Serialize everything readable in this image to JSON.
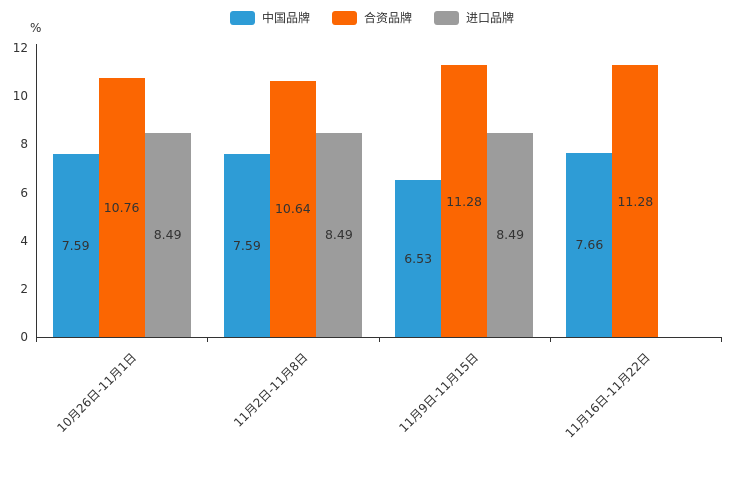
{
  "chart_data": {
    "type": "bar",
    "title": "",
    "categories": [
      "10月26日-11月1日",
      "11月2日-11月8日",
      "11月9日-11月15日",
      "11月16日-11月22日"
    ],
    "series": [
      {
        "name": "中国品牌",
        "color": "#2E9CD6",
        "values": [
          7.59,
          7.59,
          6.53,
          7.66
        ]
      },
      {
        "name": "合资品牌",
        "color": "#FB6602",
        "values": [
          10.76,
          10.64,
          11.28,
          11.28
        ]
      },
      {
        "name": "进口品牌",
        "color": "#9C9C9C",
        "values": [
          8.49,
          8.49,
          8.49,
          null
        ]
      }
    ],
    "ylabel": "%",
    "ylim": [
      0,
      12
    ],
    "yticks": [
      0,
      2,
      4,
      6,
      8,
      10,
      12
    ],
    "grid": false,
    "legend_position": "top",
    "value_labels": "inside-middle",
    "axis_color": "#333333",
    "text_color": "#333333"
  }
}
